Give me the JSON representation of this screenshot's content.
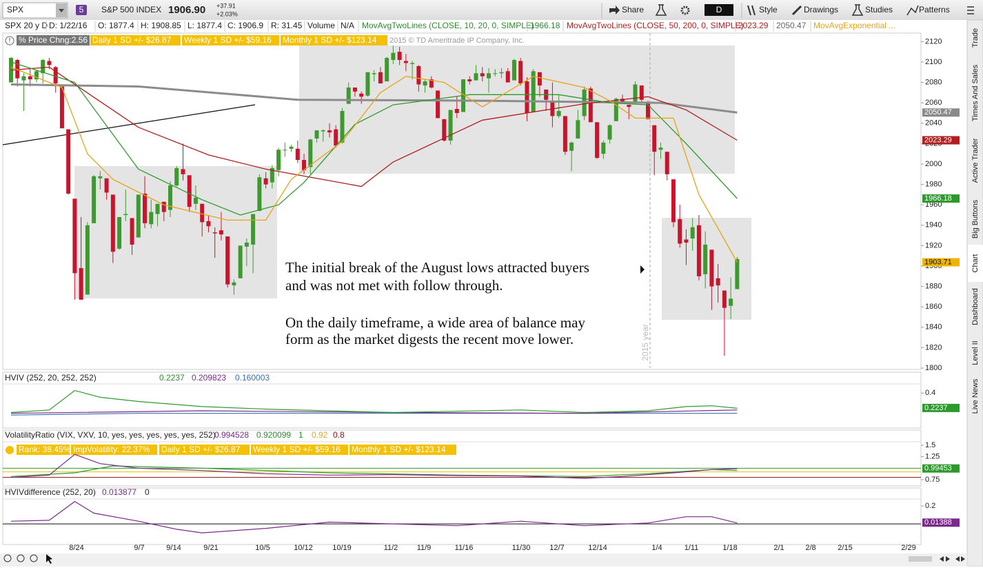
{
  "toolbar": {
    "symbol": "SPX",
    "badge": "5",
    "description": "S&P 500 INDEX",
    "last": "1906.90",
    "change": "+37.91",
    "change_pct": "+2.03%",
    "buttons": [
      "Share",
      "D",
      "Style",
      "Drawings",
      "Studies",
      "Patterns"
    ]
  },
  "info_bar": [
    "SPX 20 y D",
    "D: 1/22/16",
    "O: 1877.4",
    "H: 1908.85",
    "L: 1877.4",
    "C: 1906.9",
    "R: 31.45",
    "Volume",
    "N/A",
    "MovAvgTwoLines (CLOSE, 10, 20, 0, SIMPLE)",
    "1966.18",
    "MovAvgTwoLines (CLOSE, 50, 200, 0, SIMPLE)",
    "2023.29",
    "2050.47",
    "MovAvgExponential ..."
  ],
  "bubbles": [
    "% Price Chng:2.56",
    "Daily 1 SD +/- $26.87",
    "Weekly 1 SD +/- $59.16",
    "Monthly 1 SD +/- $123.14"
  ],
  "copyright": "2015 © TD Ameritrade IP Company, Inc.",
  "chart": {
    "type": "candlestick",
    "ylim": [
      1800,
      2127
    ],
    "yticks": [
      1800,
      1820,
      1840,
      1860,
      1880,
      1900,
      1920,
      1940,
      1960,
      1980,
      2000,
      2020,
      2040,
      2060,
      2080,
      2100,
      2120
    ],
    "up_color": "#3c9a2e",
    "down_color": "#c8142c",
    "candles": [
      [
        2080,
        2105,
        2080,
        2104
      ],
      [
        2102,
        2103,
        2076,
        2084
      ],
      [
        2082,
        2089,
        2052,
        2086
      ],
      [
        2086,
        2093,
        2076,
        2083
      ],
      [
        2083,
        2092,
        2080,
        2091
      ],
      [
        2089,
        2103,
        2079,
        2102
      ],
      [
        2101,
        2104,
        2093,
        2097
      ],
      [
        2095,
        2096,
        2070,
        2079
      ],
      [
        2076,
        2076,
        2035,
        2035
      ],
      [
        2034,
        2034,
        1970,
        1971
      ],
      [
        1966,
        1966,
        1867,
        1893
      ],
      [
        1898,
        1948,
        1867,
        1867
      ],
      [
        1872,
        1943,
        1872,
        1940
      ],
      [
        1942,
        1989,
        1942,
        1988
      ],
      [
        1986,
        1993,
        1975,
        1988
      ],
      [
        1986,
        1986,
        1965,
        1972
      ],
      [
        1970,
        1970,
        1903,
        1914
      ],
      [
        1917,
        1948,
        1916,
        1948
      ],
      [
        1950,
        1975,
        1944,
        1951
      ],
      [
        1947,
        1947,
        1911,
        1921
      ],
      [
        1928,
        1970,
        1928,
        1970
      ],
      [
        1971,
        1988,
        1937,
        1942
      ],
      [
        1941,
        1965,
        1937,
        1953
      ],
      [
        1951,
        1961,
        1939,
        1961
      ],
      [
        1963,
        1963,
        1944,
        1953
      ],
      [
        1955,
        1983,
        1948,
        1979
      ],
      [
        1979,
        1998,
        1978,
        1996
      ],
      [
        1995,
        2020,
        1984,
        1990
      ],
      [
        1989,
        1989,
        1953,
        1958
      ],
      [
        1961,
        1979,
        1955,
        1967
      ],
      [
        1961,
        1961,
        1929,
        1943
      ],
      [
        1944,
        1950,
        1933,
        1939
      ],
      [
        1933,
        1938,
        1908,
        1932
      ],
      [
        1935,
        1953,
        1925,
        1931
      ],
      [
        1929,
        1929,
        1879,
        1882
      ],
      [
        1881,
        1887,
        1872,
        1884
      ],
      [
        1888,
        1920,
        1888,
        1920
      ],
      [
        1919,
        1927,
        1900,
        1923
      ],
      [
        1921,
        1951,
        1893,
        1951
      ],
      [
        1954,
        1990,
        1954,
        1987
      ],
      [
        1986,
        1992,
        1976,
        1980
      ],
      [
        1982,
        1999,
        1976,
        1996
      ],
      [
        1994,
        2016,
        1988,
        2014
      ],
      [
        2014,
        2021,
        2007,
        2014
      ],
      [
        2015,
        2019,
        2012,
        2017
      ],
      [
        2015,
        2023,
        2001,
        2004
      ],
      [
        2004,
        2010,
        1990,
        1994
      ],
      [
        1997,
        2025,
        1990,
        2024
      ],
      [
        2025,
        2033,
        2021,
        2033
      ],
      [
        2032,
        2034,
        2022,
        2033
      ],
      [
        2033,
        2040,
        2026,
        2031
      ],
      [
        2034,
        2038,
        2016,
        2018
      ],
      [
        2021,
        2055,
        2020,
        2052
      ],
      [
        2059,
        2080,
        2059,
        2075
      ],
      [
        2075,
        2075,
        2066,
        2071
      ],
      [
        2069,
        2071,
        2059,
        2066
      ],
      [
        2067,
        2090,
        2066,
        2090
      ],
      [
        2088,
        2092,
        2081,
        2089
      ],
      [
        2090,
        2095,
        2079,
        2079
      ],
      [
        2081,
        2105,
        2081,
        2104
      ],
      [
        2102,
        2116,
        2098,
        2109
      ],
      [
        2110,
        2115,
        2097,
        2102
      ],
      [
        2101,
        2108,
        2091,
        2099
      ],
      [
        2098,
        2101,
        2083,
        2099
      ],
      [
        2096,
        2097,
        2071,
        2078
      ],
      [
        2077,
        2083,
        2070,
        2081
      ],
      [
        2083,
        2086,
        2074,
        2075
      ],
      [
        2072,
        2072,
        2045,
        2045
      ],
      [
        2044,
        2044,
        2022,
        2023
      ],
      [
        2023,
        2053,
        2019,
        2053
      ],
      [
        2054,
        2066,
        2045,
        2050
      ],
      [
        2051,
        2083,
        2051,
        2083
      ],
      [
        2083,
        2086,
        2078,
        2081
      ],
      [
        2082,
        2097,
        2082,
        2089
      ],
      [
        2089,
        2095,
        2081,
        2086
      ],
      [
        2084,
        2094,
        2070,
        2089
      ],
      [
        2089,
        2093,
        2086,
        2089
      ],
      [
        2089,
        2094,
        2084,
        2090
      ],
      [
        2091,
        2094,
        2080,
        2080
      ],
      [
        2082,
        2103,
        2082,
        2102
      ],
      [
        2101,
        2104,
        2077,
        2079
      ],
      [
        2081,
        2085,
        2042,
        2050
      ],
      [
        2051,
        2093,
        2051,
        2091
      ],
      [
        2090,
        2090,
        2066,
        2077
      ],
      [
        2073,
        2073,
        2052,
        2063
      ],
      [
        2061,
        2080,
        2036,
        2047
      ],
      [
        2047,
        2068,
        2045,
        2052
      ],
      [
        2047,
        2047,
        2009,
        2012
      ],
      [
        2013,
        2022,
        1993,
        2021
      ],
      [
        2025,
        2053,
        2025,
        2043
      ],
      [
        2047,
        2076,
        2043,
        2073
      ],
      [
        2074,
        2076,
        2041,
        2041
      ],
      [
        2041,
        2041,
        2005,
        2006
      ],
      [
        2010,
        2023,
        2005,
        2021
      ],
      [
        2024,
        2039,
        2020,
        2038
      ],
      [
        2042,
        2065,
        2042,
        2064
      ],
      [
        2064,
        2068,
        2059,
        2061
      ],
      [
        2058,
        2058,
        2044,
        2056
      ],
      [
        2061,
        2081,
        2061,
        2078
      ],
      [
        2077,
        2077,
        2061,
        2063
      ],
      [
        2060,
        2062,
        2044,
        2044
      ],
      [
        2038,
        2038,
        1989,
        2012
      ],
      [
        2014,
        2021,
        2005,
        2016
      ],
      [
        2012,
        2012,
        1984,
        1990
      ],
      [
        1985,
        1985,
        1938,
        1943
      ],
      [
        1946,
        1960,
        1918,
        1922
      ],
      [
        1926,
        1936,
        1901,
        1923
      ],
      [
        1927,
        1947,
        1915,
        1938
      ],
      [
        1940,
        1950,
        1886,
        1890
      ],
      [
        1892,
        1934,
        1878,
        1921
      ],
      [
        1916,
        1916,
        1857,
        1880
      ],
      [
        1888,
        1902,
        1864,
        1881
      ],
      [
        1876,
        1876,
        1812,
        1859
      ],
      [
        1861,
        1889,
        1848,
        1868
      ],
      [
        1877.4,
        1908.85,
        1877.4,
        1906.9
      ]
    ],
    "lines": [
      {
        "color": "#8c8c8c",
        "x": [
          0,
          20,
          45,
          75,
          102,
          114
        ],
        "values": [
          2078,
          2076,
          2063,
          2062,
          2060,
          2050.47
        ]
      },
      {
        "color": "#b01e1e",
        "x": [
          0,
          6,
          20,
          31,
          40,
          55,
          60,
          74,
          90,
          100,
          106,
          114
        ],
        "values": [
          2092,
          2095,
          2036,
          2009,
          1995,
          1978,
          2002,
          2043,
          2059,
          2066,
          2053,
          2023.29
        ]
      },
      {
        "color": "#2e9a2e",
        "x": [
          0,
          10,
          20,
          30,
          36,
          42,
          46,
          54,
          60,
          72,
          86,
          94,
          100,
          106,
          114
        ],
        "values": [
          2100,
          2080,
          1995,
          1965,
          1950,
          1960,
          1982,
          2039,
          2058,
          2068,
          2068,
          2060,
          2058,
          2020,
          1966.18
        ]
      },
      {
        "color": "#e8a317",
        "x": [
          0,
          8,
          12,
          16,
          24,
          34,
          40,
          44,
          52,
          58,
          62,
          68,
          74,
          82,
          90,
          94,
          98,
          104,
          108,
          114
        ],
        "values": [
          2095,
          2075,
          2010,
          1985,
          1960,
          1945,
          1945,
          1985,
          2022,
          2070,
          2086,
          2080,
          2056,
          2086,
          2075,
          2062,
          2045,
          2045,
          1970,
          1903.71
        ]
      }
    ],
    "price_markers": [
      {
        "value": 2050.47,
        "color": "#8a8a8a"
      },
      {
        "value": 2023.29,
        "color": "#b01e1e"
      },
      {
        "value": 1966.18,
        "color": "#2e9a2e"
      },
      {
        "value": 1903.71,
        "color": "#f0b400"
      }
    ],
    "annotation": [
      "The initial break of the August lows attracted buyers",
      "and was not met with follow through.",
      "On the daily timeframe, a wide area of balance may",
      "form as the market digests the recent move lower."
    ],
    "year_label": "2015 year"
  },
  "x_labels": [
    "8/24",
    "9/7",
    "9/14",
    "9/21",
    "10/5",
    "10/12",
    "10/19",
    "11/2",
    "11/9",
    "11/16",
    "11/30",
    "12/7",
    "12/14",
    "1/4",
    "1/11",
    "1/18",
    "2/1",
    "2/8",
    "2/15",
    "2/29"
  ],
  "panels": [
    {
      "header": [
        "HVIV (252, 20, 252, 252)",
        "0.2237",
        "0.209823",
        "0.160003"
      ],
      "ylim": [
        0.06,
        0.5
      ],
      "yticks": [
        0.4
      ],
      "markers": [
        {
          "value": 0.2237,
          "color": "#2e9a2e"
        }
      ],
      "hlines": [],
      "lines": [
        {
          "color": "#3a6fb0",
          "x": [
            0,
            20,
            114
          ],
          "values": [
            0.14,
            0.16,
            0.16
          ]
        },
        {
          "color": "#7a2a8a",
          "x": [
            0,
            30,
            60,
            90,
            114
          ],
          "values": [
            0.16,
            0.19,
            0.17,
            0.16,
            0.2
          ]
        },
        {
          "color": "#2e9a2e",
          "x": [
            0,
            6,
            10,
            14,
            20,
            30,
            40,
            60,
            80,
            90,
            100,
            106,
            110,
            114
          ],
          "values": [
            0.17,
            0.2,
            0.43,
            0.35,
            0.3,
            0.24,
            0.21,
            0.17,
            0.2,
            0.17,
            0.19,
            0.24,
            0.25,
            0.22
          ]
        }
      ]
    },
    {
      "header": [
        "VolatilityRatio (VIX, VXV, 10, yes, yes, yes, yes, yes, 252)",
        "0.994528",
        "0.920099",
        "1",
        "0.92",
        "0.8"
      ],
      "bubbles": [
        "Rank: 38.45%",
        "ImpVolatility: 22.37%",
        "Daily 1 SD +/- $26.87",
        "Weekly 1 SD +/- $59.16",
        "Monthly 1 SD +/- $123.14"
      ],
      "ylim": [
        0.69,
        1.56
      ],
      "yticks": [
        1.5,
        1.25,
        0.75
      ],
      "markers": [
        {
          "value": 0.99453,
          "color": "#2e9a2e"
        }
      ],
      "hlines": [
        {
          "value": 1,
          "color": "#2e9a2e"
        },
        {
          "value": 0.92,
          "color": "#e8c000"
        },
        {
          "value": 0.8,
          "color": "#8a1010"
        }
      ],
      "lines": [
        {
          "color": "#2e9a2e",
          "x": [
            0,
            10,
            16,
            30,
            50,
            70,
            90,
            100,
            110,
            114
          ],
          "values": [
            0.82,
            0.9,
            1.05,
            1.0,
            0.9,
            0.85,
            0.82,
            0.88,
            0.97,
            0.95
          ]
        },
        {
          "color": "#7a2a8a",
          "x": [
            0,
            6,
            10,
            14,
            20,
            30,
            40,
            50,
            60,
            70,
            80,
            86,
            90,
            96,
            104,
            110,
            114
          ],
          "values": [
            0.8,
            0.85,
            1.3,
            1.1,
            1.0,
            0.95,
            0.88,
            0.85,
            0.86,
            0.84,
            0.83,
            0.8,
            0.78,
            0.82,
            0.9,
            0.97,
            0.99
          ]
        }
      ]
    },
    {
      "header": [
        "HVIVdifference (252, 20)",
        "0.013877",
        "0"
      ],
      "ylim": [
        -0.23,
        0.27
      ],
      "yticks": [
        0.2
      ],
      "markers": [
        {
          "value": 0.01388,
          "color": "#7a2a8a"
        }
      ],
      "hlines": [
        {
          "value": 0,
          "color": "#111111"
        }
      ],
      "lines": [
        {
          "color": "#7a2a8a",
          "x": [
            0,
            6,
            10,
            13,
            20,
            26,
            30,
            40,
            50,
            60,
            70,
            80,
            90,
            100,
            106,
            110,
            114
          ],
          "values": [
            0.03,
            0.04,
            0.25,
            0.12,
            0.03,
            -0.06,
            -0.1,
            -0.05,
            0.02,
            0.0,
            -0.02,
            0.03,
            -0.02,
            0.01,
            0.08,
            0.08,
            0.01
          ]
        }
      ]
    }
  ],
  "sidebar_tabs": [
    "Trade",
    "Times And Sales",
    "Active Trader",
    "Big Buttons",
    "Chart",
    "Dashboard",
    "Level II",
    "Live News"
  ]
}
